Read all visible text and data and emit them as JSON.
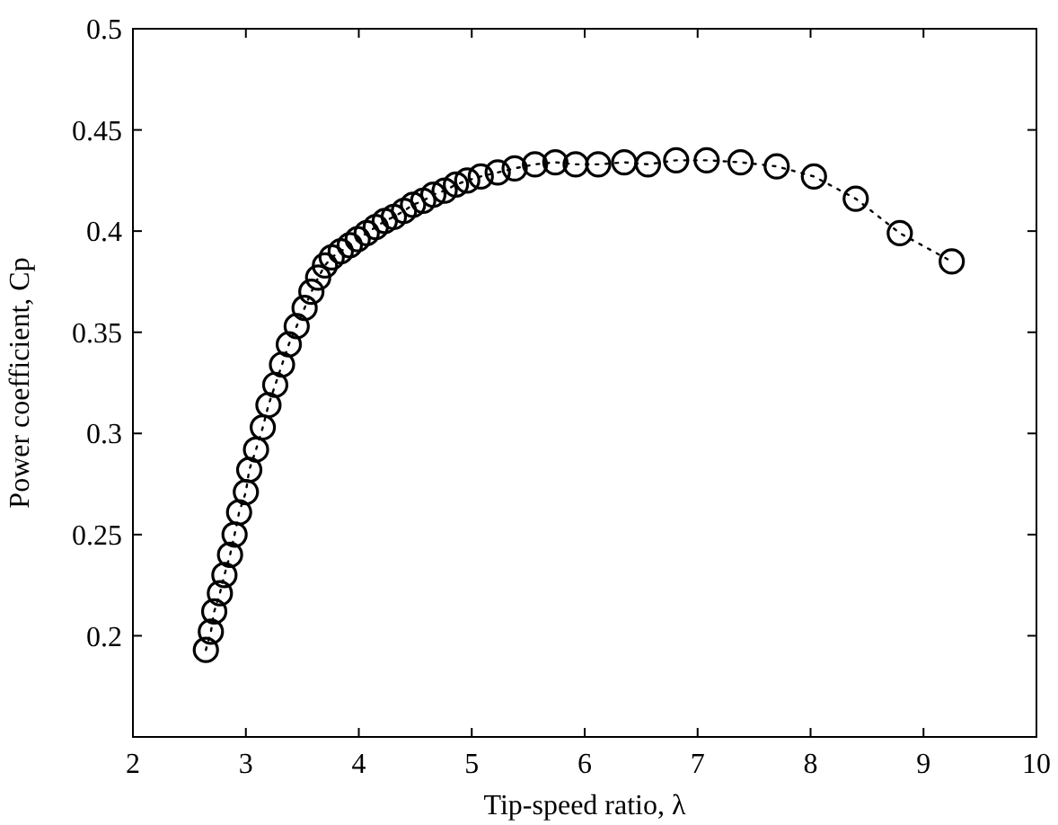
{
  "chart_data": {
    "type": "line",
    "xlabel": "Tip-speed ratio, λ",
    "ylabel": "Power coefficient, Cp",
    "marker": "circle",
    "line_style": "dotted",
    "grid": false,
    "xlim": [
      2,
      10
    ],
    "ylim": [
      0.15,
      0.5
    ],
    "xticks": [
      2,
      3,
      4,
      5,
      6,
      7,
      8,
      9,
      10
    ],
    "yticks": [
      0.2,
      0.25,
      0.3,
      0.35,
      0.4,
      0.45,
      0.5
    ],
    "series": [
      {
        "color": "#000000",
        "x": [
          2.646,
          2.69,
          2.72,
          2.77,
          2.81,
          2.86,
          2.9,
          2.94,
          3.0,
          3.03,
          3.09,
          3.15,
          3.2,
          3.26,
          3.32,
          3.38,
          3.45,
          3.52,
          3.58,
          3.64,
          3.7,
          3.76,
          3.84,
          3.92,
          3.99,
          4.07,
          4.15,
          4.23,
          4.31,
          4.4,
          4.48,
          4.57,
          4.66,
          4.76,
          4.86,
          4.96,
          5.08,
          5.23,
          5.38,
          5.56,
          5.74,
          5.92,
          6.12,
          6.35,
          6.56,
          6.81,
          7.08,
          7.38,
          7.7,
          8.03,
          8.4,
          8.79,
          9.25
        ],
        "values": [
          0.193,
          0.202,
          0.212,
          0.221,
          0.23,
          0.24,
          0.25,
          0.261,
          0.271,
          0.282,
          0.292,
          0.303,
          0.314,
          0.324,
          0.334,
          0.344,
          0.353,
          0.362,
          0.37,
          0.377,
          0.383,
          0.387,
          0.39,
          0.393,
          0.396,
          0.399,
          0.402,
          0.405,
          0.407,
          0.41,
          0.413,
          0.415,
          0.418,
          0.42,
          0.423,
          0.425,
          0.427,
          0.429,
          0.431,
          0.433,
          0.434,
          0.433,
          0.433,
          0.434,
          0.433,
          0.435,
          0.435,
          0.434,
          0.432,
          0.427,
          0.416,
          0.399,
          0.385
        ]
      }
    ]
  }
}
